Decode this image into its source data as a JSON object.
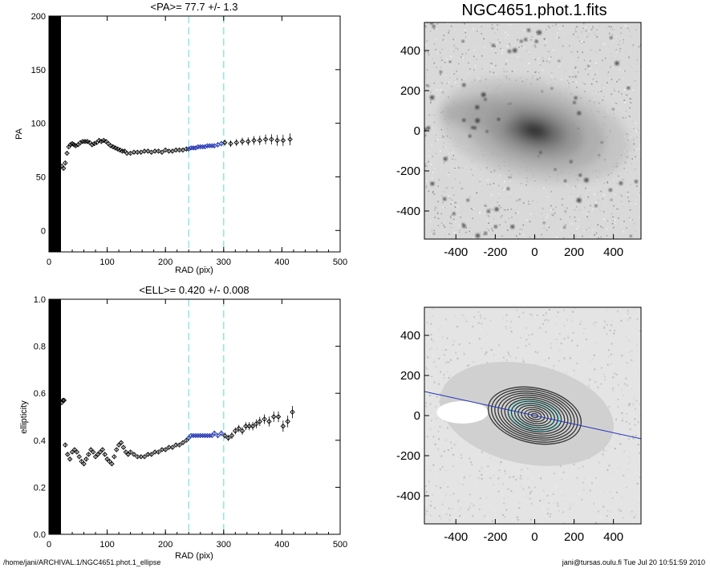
{
  "footer": {
    "left": "/home/jani/ARCHIVAL.1/NGC4651.phot.1_ellipse",
    "right": "jani@tursas.oulu.fi  Tue Jul 20 10:51:59 2010"
  },
  "chart_data": [
    {
      "id": "pa",
      "type": "scatter",
      "title": "<PA>=  77.7 +/-   1.3",
      "xlabel": "RAD (pix)",
      "ylabel": "PA",
      "xlim": [
        0,
        500
      ],
      "ylim": [
        -20,
        200
      ],
      "xticks": [
        0,
        100,
        200,
        300,
        400,
        500
      ],
      "yticks": [
        0,
        50,
        100,
        150,
        200
      ],
      "vlines": [
        240,
        300
      ],
      "fit_range": [
        240,
        300
      ],
      "series": [
        {
          "name": "PA profile",
          "x": [
            22,
            25,
            28,
            31,
            34,
            37,
            40,
            43,
            46,
            50,
            54,
            58,
            62,
            66,
            70,
            74,
            78,
            82,
            86,
            90,
            94,
            98,
            102,
            106,
            110,
            114,
            118,
            122,
            126,
            130,
            134,
            140,
            146,
            152,
            158,
            164,
            170,
            176,
            182,
            188,
            194,
            200,
            206,
            212,
            218,
            224,
            230,
            236,
            240,
            244,
            248,
            252,
            256,
            260,
            264,
            268,
            272,
            276,
            280,
            284,
            290,
            296,
            302,
            312,
            322,
            332,
            342,
            352,
            362,
            372,
            382,
            392,
            402,
            414
          ],
          "y": [
            60,
            58,
            63,
            72,
            78,
            80,
            81,
            80,
            79,
            80,
            82,
            83,
            83,
            83,
            82,
            80,
            81,
            82,
            84,
            83,
            84,
            83,
            81,
            79,
            78,
            77,
            76,
            75,
            74,
            74,
            72,
            72,
            73,
            73,
            73,
            74,
            74,
            73,
            74,
            74,
            73,
            75,
            74,
            74,
            75,
            75,
            75,
            76,
            76,
            77,
            77,
            77,
            78,
            78,
            78,
            78,
            79,
            79,
            79,
            79,
            80,
            81,
            82,
            81,
            82,
            83,
            83,
            84,
            84,
            85,
            85,
            84,
            84,
            85
          ]
        }
      ]
    },
    {
      "id": "ell",
      "type": "scatter",
      "title": "<ELL>= 0.420 +/-  0.008",
      "xlabel": "RAD (pix)",
      "ylabel": "ellipticity",
      "xlim": [
        0,
        500
      ],
      "ylim": [
        0.0,
        1.0
      ],
      "xticks": [
        0,
        100,
        200,
        300,
        400,
        500
      ],
      "yticks": [
        0.0,
        0.2,
        0.4,
        0.6,
        0.8,
        1.0
      ],
      "vlines": [
        240,
        300
      ],
      "fit_range": [
        240,
        300
      ],
      "series": [
        {
          "name": "ellipticity profile",
          "x": [
            22,
            24,
            26,
            28,
            32,
            36,
            40,
            44,
            48,
            52,
            56,
            60,
            64,
            68,
            72,
            76,
            80,
            84,
            88,
            92,
            96,
            100,
            104,
            108,
            112,
            116,
            120,
            124,
            128,
            132,
            136,
            140,
            146,
            152,
            158,
            164,
            170,
            176,
            182,
            188,
            194,
            200,
            206,
            212,
            218,
            224,
            230,
            236,
            240,
            244,
            248,
            252,
            256,
            260,
            264,
            268,
            272,
            276,
            280,
            284,
            290,
            296,
            302,
            308,
            314,
            320,
            326,
            332,
            338,
            344,
            350,
            356,
            362,
            370,
            378,
            386,
            394,
            402,
            410,
            418
          ],
          "y": [
            0.56,
            0.57,
            0.57,
            0.38,
            0.34,
            0.32,
            0.35,
            0.36,
            0.35,
            0.33,
            0.31,
            0.3,
            0.32,
            0.34,
            0.36,
            0.35,
            0.33,
            0.34,
            0.35,
            0.36,
            0.34,
            0.32,
            0.31,
            0.3,
            0.33,
            0.36,
            0.38,
            0.39,
            0.37,
            0.35,
            0.34,
            0.35,
            0.34,
            0.33,
            0.33,
            0.33,
            0.34,
            0.34,
            0.35,
            0.35,
            0.36,
            0.36,
            0.37,
            0.37,
            0.38,
            0.38,
            0.39,
            0.4,
            0.41,
            0.42,
            0.42,
            0.42,
            0.42,
            0.42,
            0.42,
            0.42,
            0.42,
            0.42,
            0.42,
            0.43,
            0.42,
            0.43,
            0.42,
            0.41,
            0.42,
            0.44,
            0.45,
            0.44,
            0.46,
            0.46,
            0.46,
            0.47,
            0.48,
            0.49,
            0.48,
            0.5,
            0.5,
            0.46,
            0.48,
            0.52
          ]
        }
      ]
    },
    {
      "id": "img",
      "type": "heatmap",
      "title": "NGC4651.phot.1.fits",
      "xlim": [
        -560,
        540
      ],
      "ylim": [
        -540,
        540
      ],
      "xticks": [
        -400,
        -200,
        0,
        200,
        400
      ],
      "yticks": [
        -400,
        -200,
        0,
        200,
        400
      ],
      "galaxy": {
        "center": [
          0,
          0
        ],
        "pa": 77.7,
        "ell": 0.42
      }
    },
    {
      "id": "contour",
      "type": "heatmap",
      "title": "",
      "xlim": [
        -560,
        540
      ],
      "ylim": [
        -540,
        540
      ],
      "xticks": [
        -400,
        -200,
        0,
        200,
        400
      ],
      "yticks": [
        -400,
        -200,
        0,
        200,
        400
      ],
      "pa_line": {
        "pa": 77.7
      },
      "contours": {
        "n": 14,
        "ell": 0.42
      },
      "fit_ellipses": [
        {
          "a": 240,
          "ell": 0.42
        },
        {
          "a": 300,
          "ell": 0.42
        }
      ]
    }
  ]
}
